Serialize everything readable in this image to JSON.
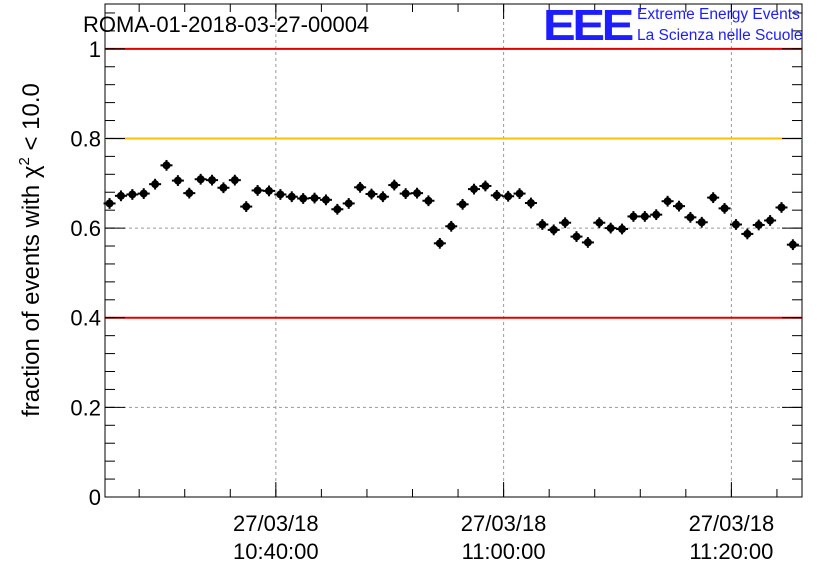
{
  "header": {
    "run_title": "ROMA-01-2018-03-27-00004",
    "logo_letters": "EEE",
    "logo_line1": "Extreme Energy Events",
    "logo_line2": "La Scienza nelle Scuole"
  },
  "colors": {
    "threshold_red": "#e00000",
    "threshold_yellow": "#ffc000",
    "points": "#000000",
    "logo": "#1d1dff"
  },
  "chart_data": {
    "type": "scatter",
    "ylabel_prefix": "fraction of events with ",
    "ylabel_symbol": "χ",
    "ylabel_sup": "2",
    "ylabel_suffix": " < 10.0",
    "xlabel": "",
    "ylim": [
      0,
      1.1
    ],
    "x_range_minutes": [
      -35.0,
      26.2
    ],
    "x_unit_note": "minutes relative to 27/03/18 11:00:00",
    "grid": true,
    "y_ticks": [
      {
        "value": 0,
        "label": "0"
      },
      {
        "value": 0.2,
        "label": "0.2"
      },
      {
        "value": 0.4,
        "label": "0.4"
      },
      {
        "value": 0.6,
        "label": "0.6"
      },
      {
        "value": 0.8,
        "label": "0.8"
      },
      {
        "value": 1.0,
        "label": "1"
      }
    ],
    "x_ticks": [
      {
        "minutes": -20,
        "date": "27/03/18",
        "time": "10:40:00"
      },
      {
        "minutes": 0,
        "date": "27/03/18",
        "time": "11:00:00"
      },
      {
        "minutes": 20,
        "date": "27/03/18",
        "time": "11:20:00"
      }
    ],
    "reference_lines": [
      {
        "y": 1.0,
        "color": "#e00000"
      },
      {
        "y": 0.8,
        "color": "#ffc000"
      },
      {
        "y": 0.4,
        "color": "#e00000"
      }
    ],
    "points": {
      "x_minutes": [
        -34.6,
        -33.6,
        -32.6,
        -31.6,
        -30.6,
        -29.6,
        -28.6,
        -27.6,
        -26.6,
        -25.6,
        -24.6,
        -23.6,
        -22.6,
        -21.6,
        -20.6,
        -19.6,
        -18.6,
        -17.6,
        -16.6,
        -15.6,
        -14.6,
        -13.6,
        -12.6,
        -11.6,
        -10.6,
        -9.6,
        -8.6,
        -7.6,
        -6.6,
        -5.6,
        -4.6,
        -3.6,
        -2.6,
        -1.6,
        -0.6,
        0.4,
        1.4,
        2.4,
        3.4,
        4.4,
        5.4,
        6.4,
        7.4,
        8.4,
        9.4,
        10.4,
        11.4,
        12.4,
        13.4,
        14.4,
        15.4,
        16.4,
        17.4,
        18.4,
        19.4,
        20.4,
        21.4,
        22.4,
        23.4,
        24.4,
        25.4
      ],
      "y": [
        0.655,
        0.672,
        0.675,
        0.677,
        0.698,
        0.74,
        0.706,
        0.678,
        0.709,
        0.707,
        0.69,
        0.707,
        0.648,
        0.684,
        0.683,
        0.675,
        0.67,
        0.666,
        0.667,
        0.663,
        0.642,
        0.655,
        0.691,
        0.676,
        0.67,
        0.696,
        0.677,
        0.678,
        0.661,
        0.566,
        0.604,
        0.653,
        0.687,
        0.694,
        0.673,
        0.671,
        0.677,
        0.656,
        0.608,
        0.596,
        0.612,
        0.581,
        0.568,
        0.612,
        0.6,
        0.598,
        0.626,
        0.626,
        0.63,
        0.66,
        0.649,
        0.624,
        0.613,
        0.668,
        0.644,
        0.608,
        0.587,
        0.607,
        0.617,
        0.646,
        0.563
      ],
      "y_err": 0.012
    }
  }
}
